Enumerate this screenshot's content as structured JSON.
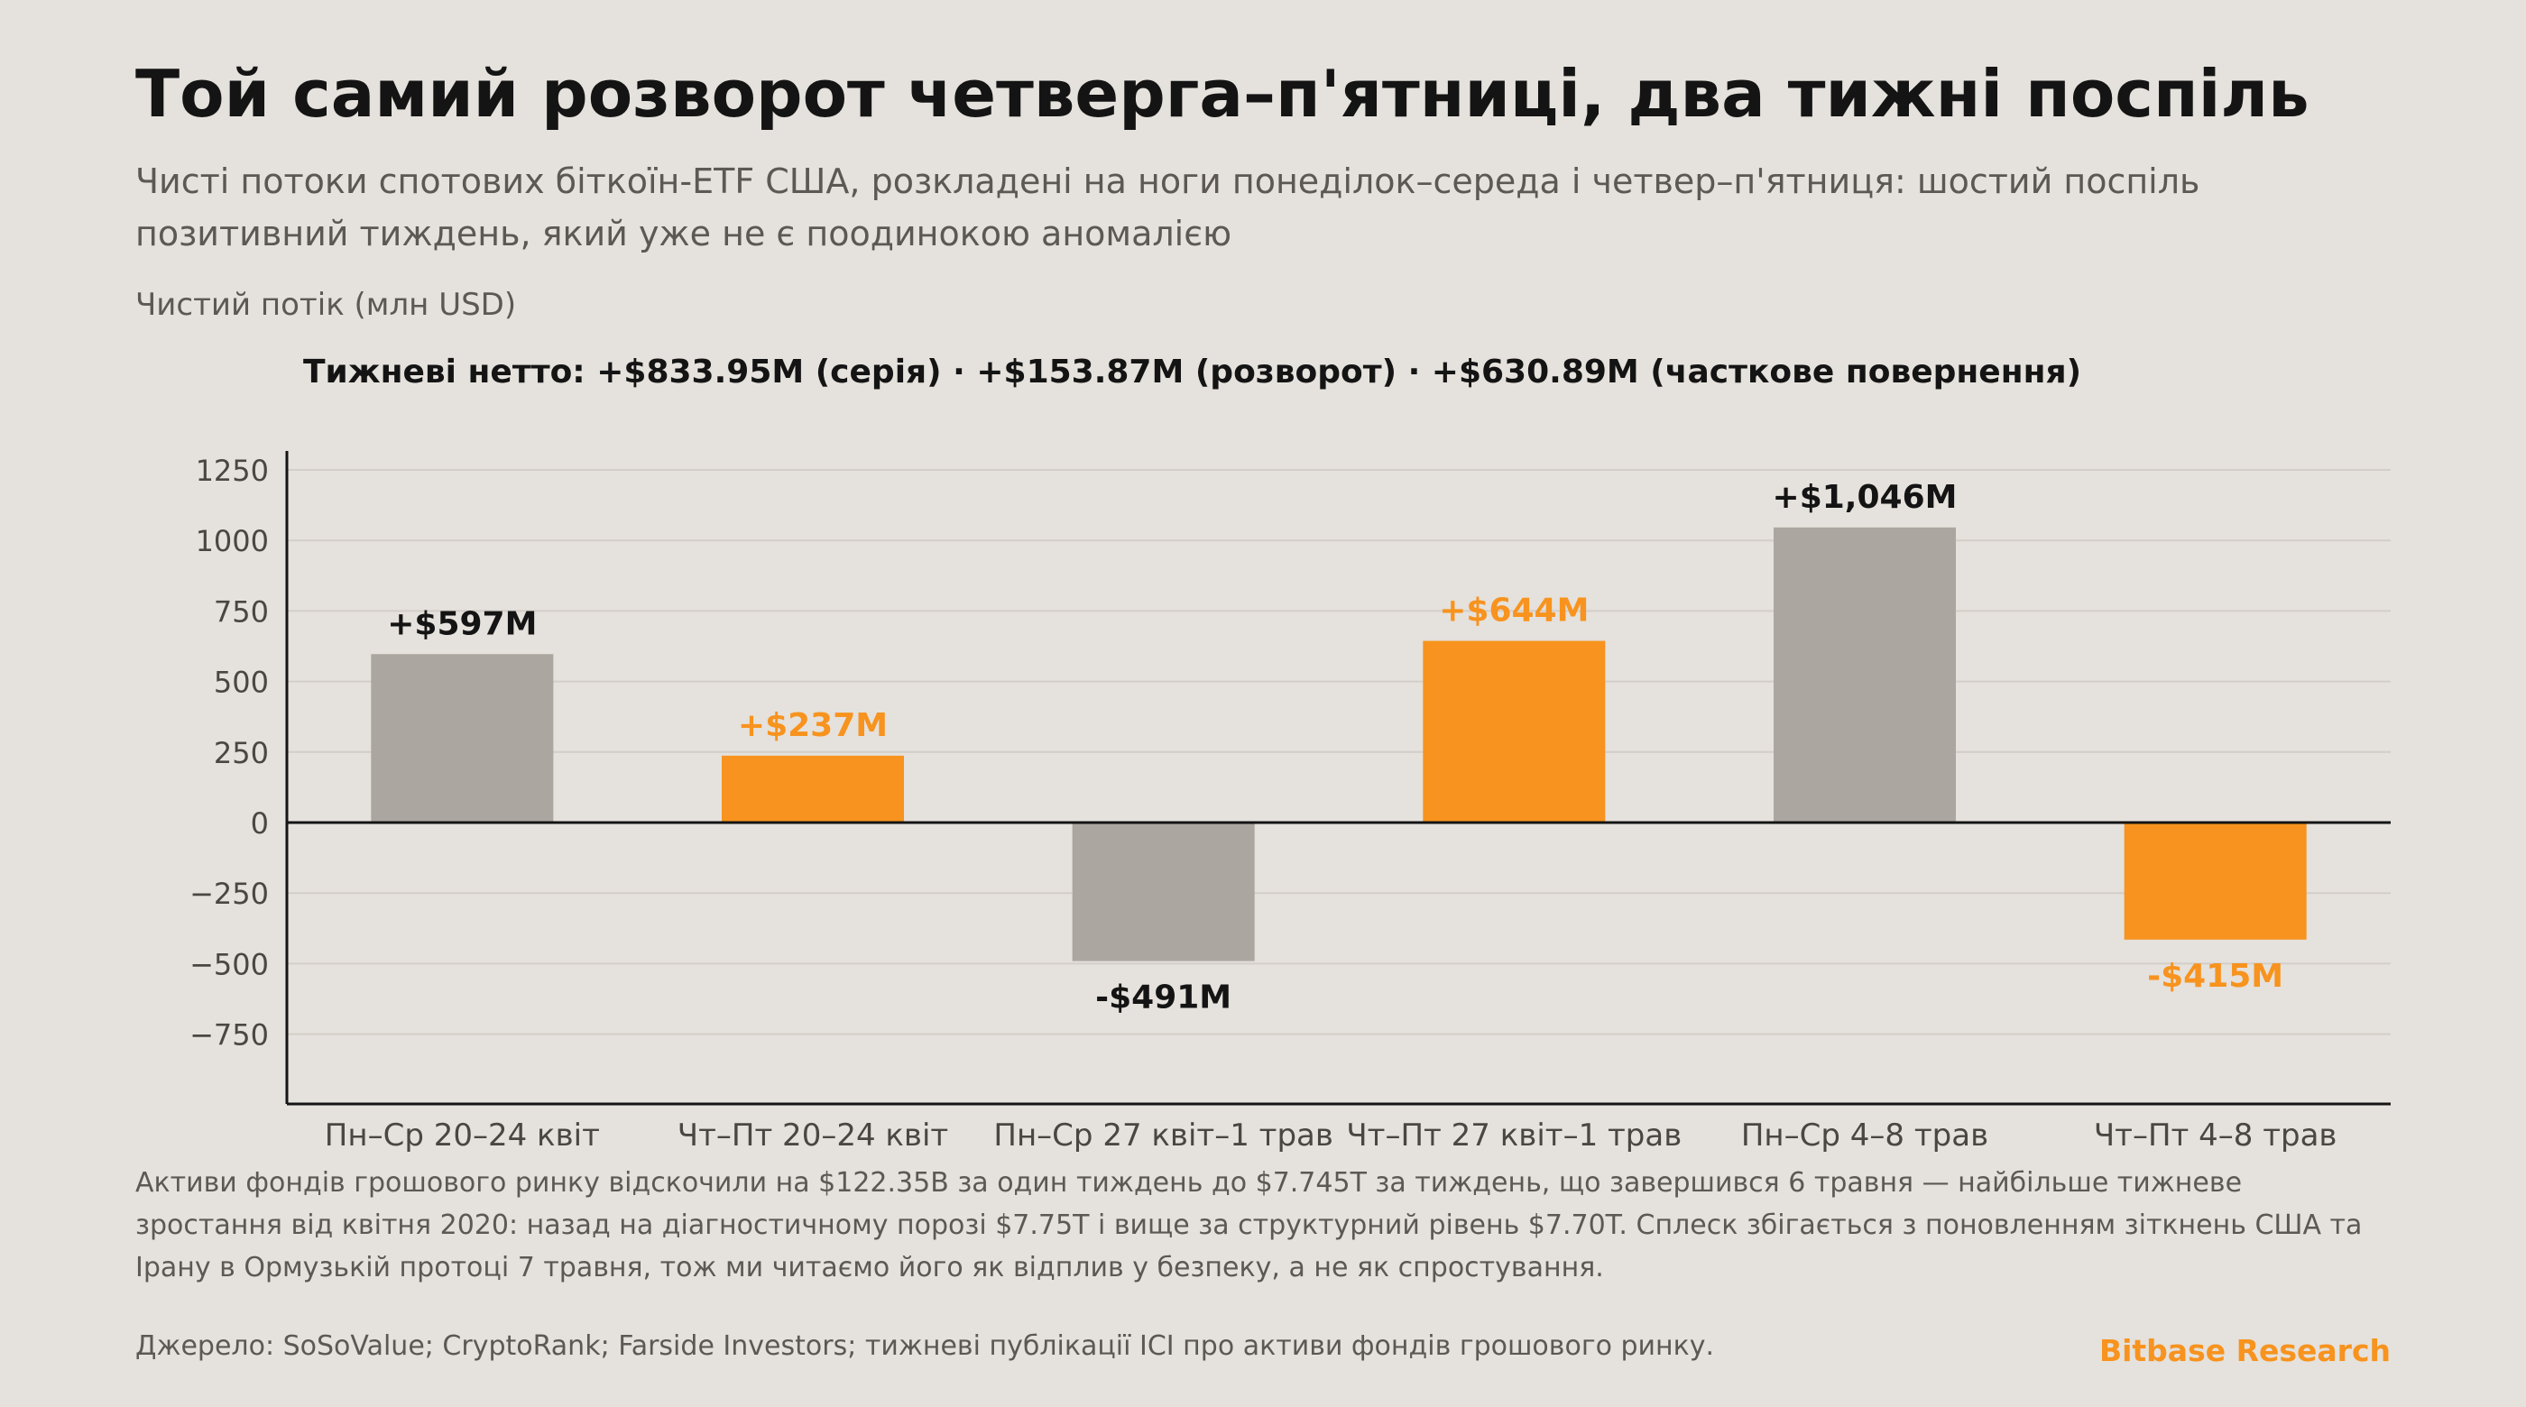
{
  "header": {
    "title": "Той самий розворот четверга–п'ятниці, два тижні поспіль",
    "subtitle": "Чисті потоки спотових біткоїн-ETF США, розкладені на ноги понеділок–середа і четвер–п'ятниця: шостий поспіль позитивний тиждень, який уже не є поодинокою аномалією",
    "ylabel": "Чистий потік (млн USD)",
    "weekly_net": "Тижневі нетто: +$833.95M (серія) · +$153.87M (розворот) · +$630.89M (часткове повернення)"
  },
  "chart_data": {
    "type": "bar",
    "categories": [
      "Пн–Ср 20–24 квіт",
      "Чт–Пт 20–24 квіт",
      "Пн–Ср 27 квіт–1 трав",
      "Чт–Пт 27 квіт–1 трав",
      "Пн–Ср 4–8 трав",
      "Чт–Пт 4–8 трав"
    ],
    "values": [
      597,
      237,
      -491,
      644,
      1046,
      -415
    ],
    "data_labels": [
      "+$597M",
      "+$237M",
      "-$491M",
      "+$644M",
      "+$1,046M",
      "-$415M"
    ],
    "highlight": [
      false,
      true,
      false,
      true,
      false,
      true
    ],
    "ylabel": "Чистий потік (млн USD)",
    "ylim": [
      -1000,
      1250
    ],
    "yticks": [
      1250,
      1000,
      750,
      500,
      250,
      0,
      -250,
      -500,
      -750
    ],
    "ytick_labels": [
      "1250",
      "1000",
      "750",
      "500",
      "250",
      "0",
      "−250",
      "−500",
      "−750"
    ],
    "grid": true,
    "colors": {
      "mon_wed": "#aba69f",
      "thu_fri": "#f7931e",
      "label_dark": "#141414",
      "label_accent": "#f7931e"
    }
  },
  "footer": {
    "note": "Активи фондів грошового ринку відскочили на $122.35B за один тиждень до $7.745T за тиждень, що завершився 6 травня — найбільше тижневе зростання від квітня 2020: назад на діагностичному порозі $7.75T і вище за структурний рівень $7.70T. Сплеск збігається з поновленням зіткнень США та Ірану в Ормузькій протоці 7 травня, тож ми читаємо його як відплив у безпеку, а не як спростування.",
    "source": "Джерело: SoSoValue; CryptoRank; Farside Investors; тижневі публікації ICI про активи фондів грошового ринку.",
    "brand": "Bitbase Research"
  }
}
